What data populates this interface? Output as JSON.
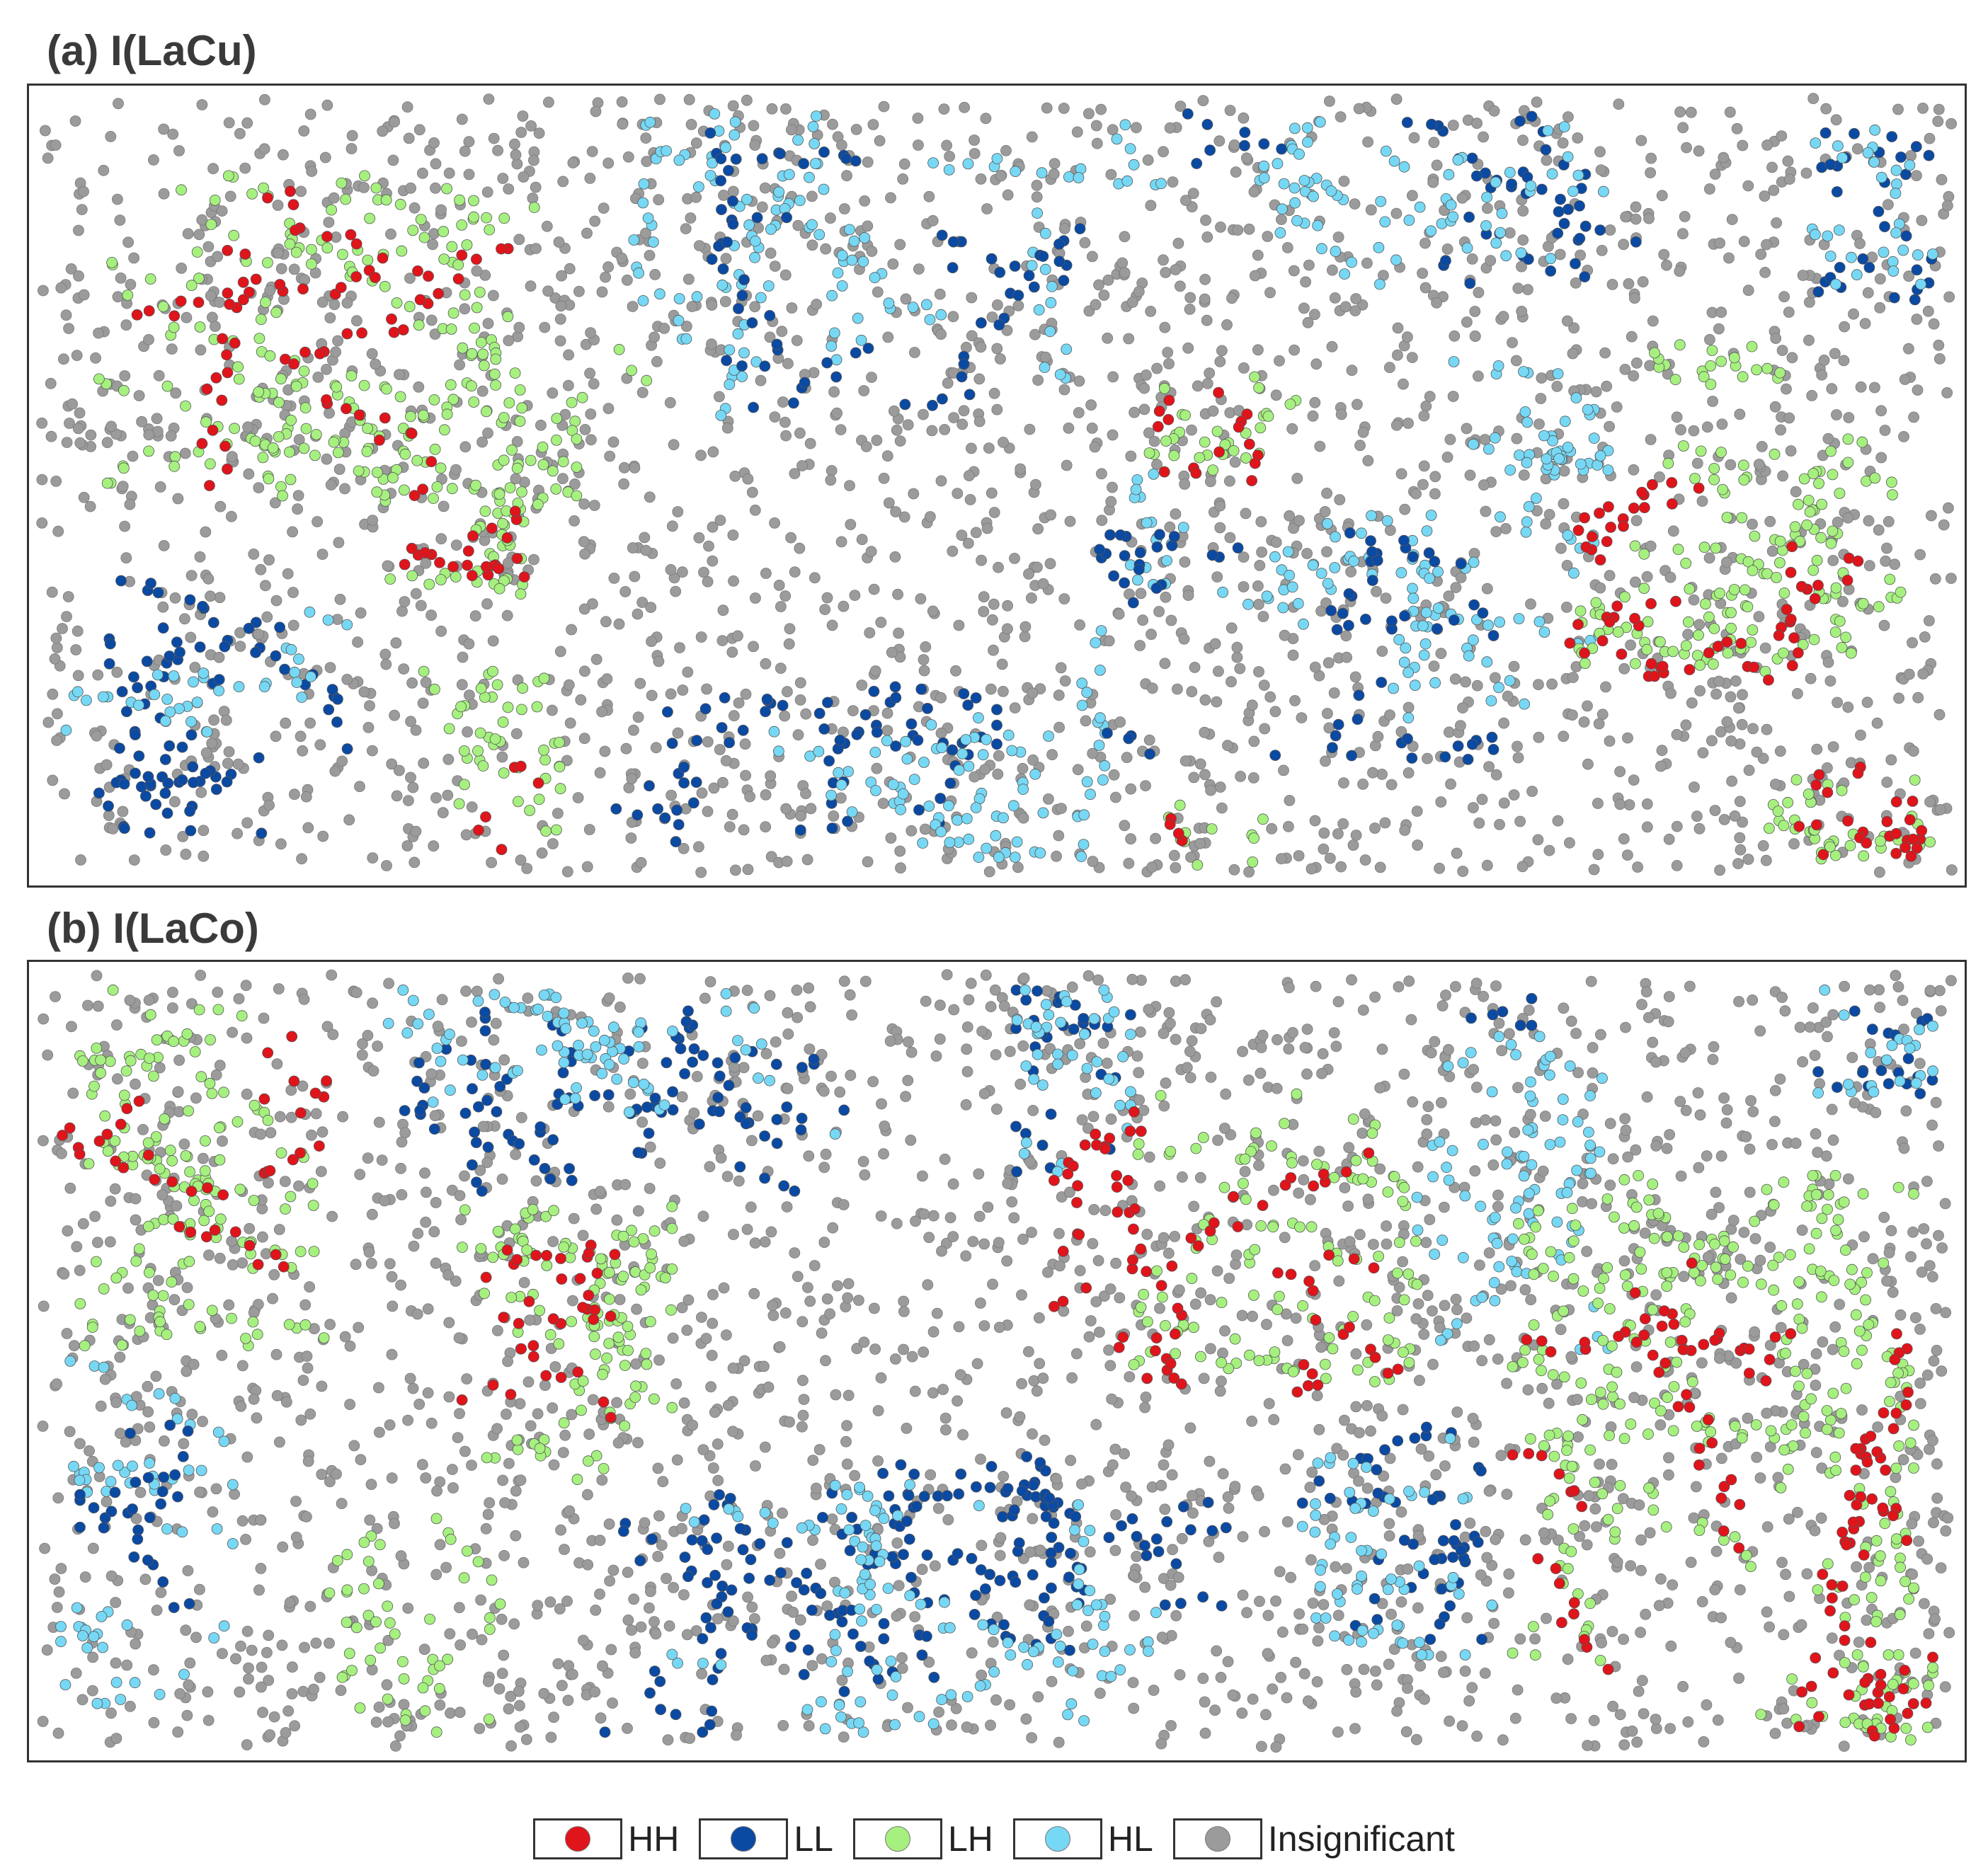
{
  "panels": [
    {
      "id": "a",
      "title": "(a) I(LaCu)"
    },
    {
      "id": "b",
      "title": "(b) I(LaCo)"
    }
  ],
  "legend": [
    {
      "key": "HH",
      "label": "HH",
      "color": "#e0141b"
    },
    {
      "key": "LL",
      "label": "LL",
      "color": "#0b4aa2"
    },
    {
      "key": "LH",
      "label": "LH",
      "color": "#a6f07f"
    },
    {
      "key": "HL",
      "label": "HL",
      "color": "#76d8f4"
    },
    {
      "key": "NS",
      "label": "Insignificant",
      "color": "#9b9b9b"
    }
  ],
  "chart_data": [
    {
      "type": "scatter",
      "title": "(a) I(LaCu)",
      "categories": [
        "HH",
        "LL",
        "LH",
        "HL",
        "Insignificant"
      ],
      "xlim": [
        0,
        100
      ],
      "ylim": [
        0,
        100
      ],
      "grid": false,
      "legend_position": "bottom",
      "background_category": "Insignificant",
      "clusters": [
        {
          "category": "LH",
          "x": [
            3,
            32
          ],
          "y": [
            48,
            90
          ],
          "count": 230
        },
        {
          "category": "HH",
          "x": [
            3,
            30
          ],
          "y": [
            50,
            88
          ],
          "count": 70
        },
        {
          "category": "LH",
          "x": [
            18,
            28
          ],
          "y": [
            36,
            56
          ],
          "count": 50
        },
        {
          "category": "HH",
          "x": [
            19,
            27
          ],
          "y": [
            38,
            52
          ],
          "count": 24
        },
        {
          "category": "LH",
          "x": [
            20,
            28
          ],
          "y": [
            4,
            26
          ],
          "count": 45
        },
        {
          "category": "HH",
          "x": [
            22,
            26
          ],
          "y": [
            3,
            24
          ],
          "count": 5
        },
        {
          "category": "LL",
          "x": [
            3,
            16
          ],
          "y": [
            4,
            40
          ],
          "count": 90
        },
        {
          "category": "HL",
          "x": [
            1,
            16
          ],
          "y": [
            18,
            46
          ],
          "count": 35
        },
        {
          "category": "HL",
          "x": [
            31,
            60
          ],
          "y": [
            58,
            98
          ],
          "count": 130
        },
        {
          "category": "LL",
          "x": [
            35,
            55
          ],
          "y": [
            58,
            96
          ],
          "count": 70
        },
        {
          "category": "LL",
          "x": [
            29,
            50
          ],
          "y": [
            4,
            24
          ],
          "count": 70
        },
        {
          "category": "HL",
          "x": [
            38,
            56
          ],
          "y": [
            2,
            20
          ],
          "count": 80
        },
        {
          "category": "HL",
          "x": [
            54,
            82
          ],
          "y": [
            20,
            52
          ],
          "count": 120
        },
        {
          "category": "LL",
          "x": [
            55,
            76
          ],
          "y": [
            14,
            44
          ],
          "count": 70
        },
        {
          "category": "LL",
          "x": [
            60,
            84
          ],
          "y": [
            76,
            98
          ],
          "count": 55
        },
        {
          "category": "HL",
          "x": [
            62,
            82
          ],
          "y": [
            76,
            98
          ],
          "count": 70
        },
        {
          "category": "LH",
          "x": [
            57,
            66
          ],
          "y": [
            52,
            68
          ],
          "count": 30
        },
        {
          "category": "HH",
          "x": [
            57,
            64
          ],
          "y": [
            50,
            62
          ],
          "count": 15
        },
        {
          "category": "HL",
          "x": [
            72,
            82
          ],
          "y": [
            52,
            66
          ],
          "count": 45
        },
        {
          "category": "LH",
          "x": [
            80,
            98
          ],
          "y": [
            26,
            56
          ],
          "count": 140
        },
        {
          "category": "HH",
          "x": [
            80,
            97
          ],
          "y": [
            24,
            52
          ],
          "count": 65
        },
        {
          "category": "LH",
          "x": [
            83,
            91
          ],
          "y": [
            62,
            72
          ],
          "count": 20
        },
        {
          "category": "LL",
          "x": [
            93,
            99
          ],
          "y": [
            74,
            98
          ],
          "count": 30
        },
        {
          "category": "HL",
          "x": [
            92,
            99
          ],
          "y": [
            76,
            96
          ],
          "count": 30
        },
        {
          "category": "LH",
          "x": [
            90,
            99
          ],
          "y": [
            1,
            12
          ],
          "count": 35
        },
        {
          "category": "HH",
          "x": [
            92,
            99
          ],
          "y": [
            1,
            14
          ],
          "count": 25
        },
        {
          "category": "LH",
          "x": [
            59,
            64
          ],
          "y": [
            1,
            10
          ],
          "count": 12
        },
        {
          "category": "HH",
          "x": [
            59,
            61
          ],
          "y": [
            2,
            7
          ],
          "count": 3
        }
      ]
    },
    {
      "type": "scatter",
      "title": "(b) I(LaCo)",
      "categories": [
        "HH",
        "LL",
        "LH",
        "HL",
        "Insignificant"
      ],
      "xlim": [
        0,
        100
      ],
      "ylim": [
        0,
        100
      ],
      "grid": false,
      "legend_position": "bottom",
      "background_category": "Insignificant",
      "clusters": [
        {
          "category": "LH",
          "x": [
            2,
            15
          ],
          "y": [
            52,
            98
          ],
          "count": 150
        },
        {
          "category": "HH",
          "x": [
            1,
            15
          ],
          "y": [
            55,
            92
          ],
          "count": 40
        },
        {
          "category": "LH",
          "x": [
            22,
            33
          ],
          "y": [
            34,
            70
          ],
          "count": 120
        },
        {
          "category": "HH",
          "x": [
            22,
            30
          ],
          "y": [
            35,
            65
          ],
          "count": 35
        },
        {
          "category": "LH",
          "x": [
            15,
            24
          ],
          "y": [
            2,
            30
          ],
          "count": 50
        },
        {
          "category": "HL",
          "x": [
            1,
            10
          ],
          "y": [
            4,
            50
          ],
          "count": 60
        },
        {
          "category": "LL",
          "x": [
            2,
            10
          ],
          "y": [
            8,
            42
          ],
          "count": 30
        },
        {
          "category": "LL",
          "x": [
            19,
            42
          ],
          "y": [
            72,
            96
          ],
          "count": 100
        },
        {
          "category": "HL",
          "x": [
            18,
            42
          ],
          "y": [
            78,
            98
          ],
          "count": 80
        },
        {
          "category": "LL",
          "x": [
            28,
            62
          ],
          "y": [
            2,
            38
          ],
          "count": 200
        },
        {
          "category": "HL",
          "x": [
            33,
            62
          ],
          "y": [
            2,
            34
          ],
          "count": 120
        },
        {
          "category": "LL",
          "x": [
            51,
            57
          ],
          "y": [
            74,
            98
          ],
          "count": 30
        },
        {
          "category": "HL",
          "x": [
            51,
            57
          ],
          "y": [
            72,
            98
          ],
          "count": 40
        },
        {
          "category": "LH",
          "x": [
            57,
            72
          ],
          "y": [
            46,
            86
          ],
          "count": 120
        },
        {
          "category": "HH",
          "x": [
            53,
            71
          ],
          "y": [
            46,
            86
          ],
          "count": 80
        },
        {
          "category": "HL",
          "x": [
            72,
            82
          ],
          "y": [
            48,
            92
          ],
          "count": 90
        },
        {
          "category": "LL",
          "x": [
            66,
            76
          ],
          "y": [
            14,
            42
          ],
          "count": 50
        },
        {
          "category": "HL",
          "x": [
            66,
            76
          ],
          "y": [
            12,
            40
          ],
          "count": 60
        },
        {
          "category": "LH",
          "x": [
            77,
            98
          ],
          "y": [
            10,
            74
          ],
          "count": 300
        },
        {
          "category": "HH",
          "x": [
            77,
            98
          ],
          "y": [
            10,
            70
          ],
          "count": 110
        },
        {
          "category": "LL",
          "x": [
            93,
            99
          ],
          "y": [
            84,
            98
          ],
          "count": 20
        },
        {
          "category": "HL",
          "x": [
            93,
            99
          ],
          "y": [
            84,
            98
          ],
          "count": 20
        },
        {
          "category": "LH",
          "x": [
            90,
            99
          ],
          "y": [
            1,
            12
          ],
          "count": 35
        },
        {
          "category": "HH",
          "x": [
            92,
            99
          ],
          "y": [
            1,
            14
          ],
          "count": 25
        },
        {
          "category": "LL",
          "x": [
            74,
            78
          ],
          "y": [
            93,
            98
          ],
          "count": 5
        }
      ]
    }
  ]
}
